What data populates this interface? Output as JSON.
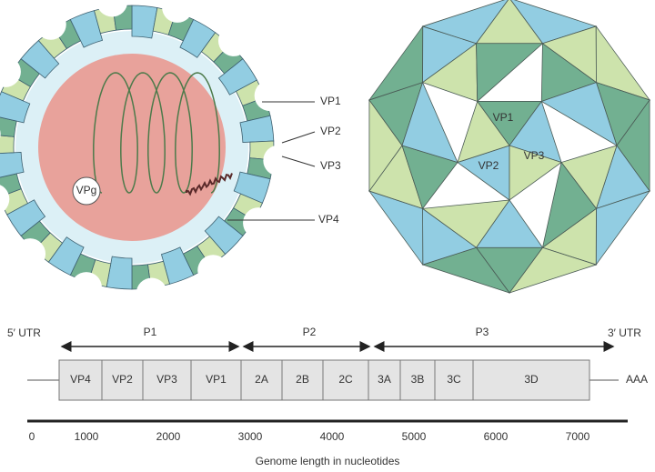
{
  "capsid_section": {
    "labels": [
      "VP1",
      "VP2",
      "VP3",
      "VP4"
    ],
    "vpg": "VPg"
  },
  "capsid_surface": {
    "labels": [
      "VP1",
      "VP2",
      "VP3"
    ]
  },
  "genome": {
    "utr5": "5′ UTR",
    "utr3": "3′ UTR",
    "regions": [
      "P1",
      "P2",
      "P3"
    ],
    "segments": [
      "VP4",
      "VP2",
      "VP3",
      "VP1",
      "2A",
      "2B",
      "2C",
      "3A",
      "3B",
      "3C",
      "3D"
    ],
    "tail": "AAA",
    "axis_ticks": [
      "0",
      "1000",
      "2000",
      "3000",
      "4000",
      "5000",
      "6000",
      "7000"
    ],
    "axis_label": "Genome length in nucleotides"
  }
}
